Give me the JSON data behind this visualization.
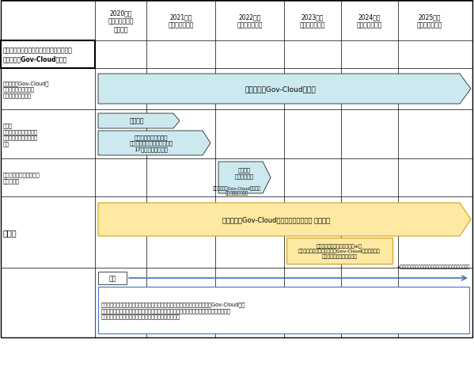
{
  "fig_width": 5.99,
  "fig_height": 4.77,
  "bg_color": "#ffffff",
  "col_headers": [
    "2020年度\n（令和２年度）\n１〜３月",
    "2021年度\n（令和３年度）",
    "2022年度\n（令和４年度）",
    "2023年度\n（令和５年度）",
    "2024年度\n（令和６年度）",
    "2025年度\n（令和７年度）"
  ],
  "light_blue": "#cce9f0",
  "light_yellow": "#fde9a2",
  "yellow_border": "#d4a017",
  "blue_border": "#4472c4"
}
